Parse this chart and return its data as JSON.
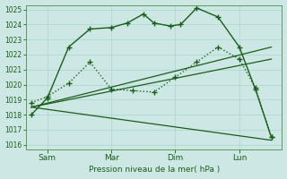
{
  "background_color": "#cde8e4",
  "grid_color": "#b0d8d2",
  "line_color_dark": "#1a5c1a",
  "line_color_mid": "#2e7d32",
  "ylabel_min": 1016,
  "ylabel_max": 1025,
  "yticks": [
    1016,
    1017,
    1018,
    1019,
    1020,
    1021,
    1022,
    1023,
    1024,
    1025
  ],
  "xlabel": "Pression niveau de la mer( hPa )",
  "xtick_labels": [
    "Sam",
    "Mar",
    "Dim",
    "Lun"
  ],
  "xtick_positions": [
    8,
    32,
    56,
    80
  ],
  "xlim": [
    0,
    96
  ],
  "lines": [
    {
      "x": [
        2,
        8,
        16,
        24,
        32,
        38,
        44,
        48,
        54,
        58,
        64,
        72,
        80,
        86,
        92
      ],
      "y": [
        1018.0,
        1019.1,
        1022.5,
        1023.7,
        1023.8,
        1024.1,
        1024.7,
        1024.1,
        1023.9,
        1024.0,
        1025.1,
        1024.5,
        1022.5,
        1019.7,
        1016.5
      ],
      "marker": "+",
      "markersize": 4,
      "linewidth": 1.0,
      "linestyle": "-",
      "color": "#1a5c1a"
    },
    {
      "x": [
        2,
        8,
        16,
        24,
        32,
        40,
        48,
        56,
        64,
        72,
        80,
        86,
        92
      ],
      "y": [
        1018.8,
        1019.2,
        1020.1,
        1021.5,
        1019.7,
        1019.6,
        1019.5,
        1020.5,
        1021.5,
        1022.5,
        1021.7,
        1019.8,
        1016.5
      ],
      "marker": "+",
      "markersize": 4,
      "linewidth": 1.0,
      "linestyle": ":",
      "color": "#1a5c1a"
    },
    {
      "x": [
        2,
        92
      ],
      "y": [
        1018.5,
        1022.5
      ],
      "marker": null,
      "markersize": 0,
      "linewidth": 0.9,
      "linestyle": "-",
      "color": "#1a5c1a"
    },
    {
      "x": [
        2,
        92
      ],
      "y": [
        1018.5,
        1021.7
      ],
      "marker": null,
      "markersize": 0,
      "linewidth": 0.9,
      "linestyle": "-",
      "color": "#1a5c1a"
    },
    {
      "x": [
        2,
        92
      ],
      "y": [
        1018.5,
        1016.3
      ],
      "marker": null,
      "markersize": 0,
      "linewidth": 0.9,
      "linestyle": "-",
      "color": "#1a5c1a"
    }
  ]
}
